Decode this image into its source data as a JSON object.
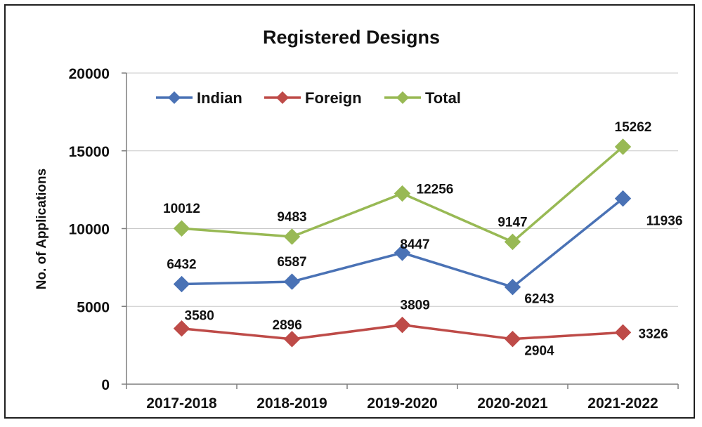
{
  "chart_data": {
    "type": "line",
    "title": "Registered Designs",
    "xlabel": "",
    "ylabel": "No. of Applications",
    "categories": [
      "2017-2018",
      "2018-2019",
      "2019-2020",
      "2020-2021",
      "2021-2022"
    ],
    "ylim": [
      0,
      20000
    ],
    "yticks": [
      0,
      5000,
      10000,
      15000,
      20000
    ],
    "ytick_labels": [
      "0",
      "5000",
      "10000",
      "15000",
      "20000"
    ],
    "grid": true,
    "legend_position": "top-left",
    "series": [
      {
        "name": "Indian",
        "values": [
          6432,
          6587,
          8447,
          6243,
          11936
        ],
        "labels": [
          "6432",
          "6587",
          "8447",
          "6243",
          "11936"
        ],
        "color": "#4A72B5"
      },
      {
        "name": "Foreign",
        "values": [
          3580,
          2896,
          3809,
          2904,
          3326
        ],
        "labels": [
          "3580",
          "2896",
          "3809",
          "2904",
          "3326"
        ],
        "color": "#BE4B48"
      },
      {
        "name": "Total",
        "values": [
          10012,
          9483,
          12256,
          9147,
          15262
        ],
        "labels": [
          "10012",
          "9483",
          "12256",
          "9147",
          "15262"
        ],
        "color": "#98B954"
      }
    ]
  }
}
